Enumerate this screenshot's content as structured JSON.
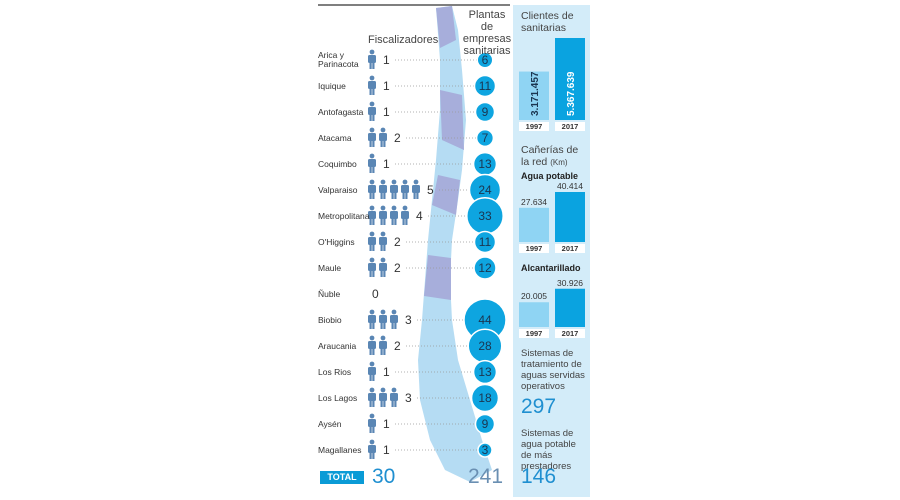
{
  "header": {
    "fiscalizadores": "Fiscalizadores",
    "plantas": "Plantas de empresas sanitarias"
  },
  "regions": [
    {
      "name": "Arica y Parinacota",
      "fiscalizadores": 1,
      "plantas": 6
    },
    {
      "name": "Iquique",
      "fiscalizadores": 1,
      "plantas": 11
    },
    {
      "name": "Antofagasta",
      "fiscalizadores": 1,
      "plantas": 9
    },
    {
      "name": "Atacama",
      "fiscalizadores": 2,
      "plantas": 7
    },
    {
      "name": "Coquimbo",
      "fiscalizadores": 1,
      "plantas": 13
    },
    {
      "name": "Valparaiso",
      "fiscalizadores": 5,
      "plantas": 24
    },
    {
      "name": "Metropolitana",
      "fiscalizadores": 4,
      "plantas": 33
    },
    {
      "name": "O'Higgins",
      "fiscalizadores": 2,
      "plantas": 11
    },
    {
      "name": "Maule",
      "fiscalizadores": 2,
      "plantas": 12
    },
    {
      "name": "Ñuble",
      "fiscalizadores": 0,
      "plantas": null
    },
    {
      "name": "Biobio",
      "fiscalizadores": 3,
      "plantas": 44
    },
    {
      "name": "Araucania",
      "fiscalizadores": 2,
      "plantas": 28
    },
    {
      "name": "Los Rios",
      "fiscalizadores": 1,
      "plantas": 13
    },
    {
      "name": "Los Lagos",
      "fiscalizadores": 3,
      "plantas": 18
    },
    {
      "name": "Aysén",
      "fiscalizadores": 1,
      "plantas": 9
    },
    {
      "name": "Magallanes",
      "fiscalizadores": 1,
      "plantas": 3
    }
  ],
  "total": {
    "label": "TOTAL",
    "fiscalizadores": 30,
    "plantas": 241
  },
  "clientes": {
    "title": "Clientes de sanitarias",
    "years": [
      "1997",
      "2017"
    ],
    "values": [
      3171457,
      5367639
    ],
    "value_labels": [
      "3.171.457",
      "5.367.639"
    ]
  },
  "canerias": {
    "title": "Cañerías de la red",
    "unit": "(Km)",
    "agua_potable": {
      "title": "Agua potable",
      "years": [
        "1997",
        "2017"
      ],
      "values": [
        27634,
        40414
      ],
      "value_labels": [
        "27.634",
        "40.414"
      ]
    },
    "alcantarillado": {
      "title": "Alcantarillado",
      "years": [
        "1997",
        "2017"
      ],
      "values": [
        20005,
        30926
      ],
      "value_labels": [
        "20.005",
        "30.926"
      ]
    }
  },
  "tratamiento": {
    "title": "Sistemas de tratamiento de aguas servidas operativos",
    "value": 297
  },
  "agua_potable_prestadores": {
    "title": "Sistemas de agua potable de más prestadores",
    "value": 146
  }
}
